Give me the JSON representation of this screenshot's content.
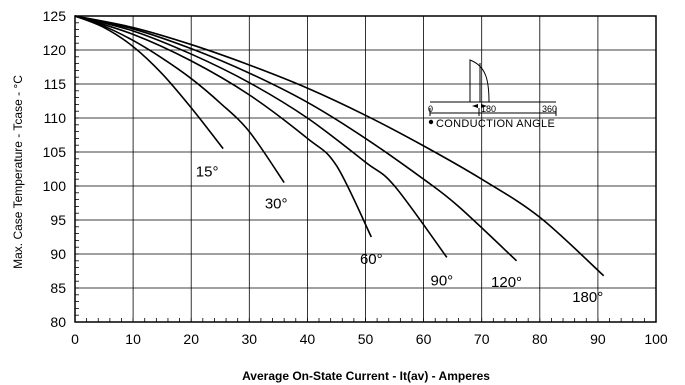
{
  "chart_data": {
    "type": "line",
    "title": "",
    "xlabel": "Average On-State Current - It(av) - Amperes",
    "ylabel": "Max. Case Temperature - Tcase - °C",
    "xlim": [
      0,
      100
    ],
    "ylim": [
      80,
      125
    ],
    "x_ticks": [
      0,
      10,
      20,
      30,
      40,
      50,
      60,
      70,
      80,
      90,
      100
    ],
    "y_ticks": [
      80,
      85,
      90,
      95,
      100,
      105,
      110,
      115,
      120,
      125
    ],
    "grid": true,
    "series": [
      {
        "name": "15°",
        "x": [
          0,
          5,
          10,
          15,
          20,
          25.5
        ],
        "y": [
          125,
          123.3,
          120.5,
          116.5,
          111.5,
          105.5
        ]
      },
      {
        "name": "30°",
        "x": [
          0,
          5,
          10,
          15,
          20,
          25,
          30,
          36
        ],
        "y": [
          125,
          123.5,
          121.4,
          118.8,
          115.8,
          112.2,
          108,
          100.5
        ]
      },
      {
        "name": "60°",
        "x": [
          0,
          10,
          20,
          30,
          40,
          45,
          51
        ],
        "y": [
          125,
          122.3,
          118.4,
          113.4,
          107,
          103,
          92.5
        ]
      },
      {
        "name": "90°",
        "x": [
          0,
          10,
          20,
          30,
          40,
          50,
          55,
          64
        ],
        "y": [
          125,
          122.8,
          119.4,
          115.2,
          110,
          103.5,
          100,
          89.5
        ]
      },
      {
        "name": "120°",
        "x": [
          0,
          10,
          20,
          30,
          40,
          50,
          60,
          66,
          76
        ],
        "y": [
          125,
          123.1,
          120.2,
          116.6,
          112.3,
          107,
          101,
          97,
          89
        ]
      },
      {
        "name": "180°",
        "x": [
          0,
          10,
          20,
          30,
          40,
          50,
          60,
          70,
          80,
          91
        ],
        "y": [
          125,
          123.3,
          120.8,
          117.8,
          114.4,
          110.4,
          105.9,
          101,
          95.4,
          86.8
        ]
      }
    ],
    "inset": {
      "ticks": [
        "0",
        "180",
        "360"
      ],
      "caption": "CONDUCTION ANGLE"
    }
  }
}
